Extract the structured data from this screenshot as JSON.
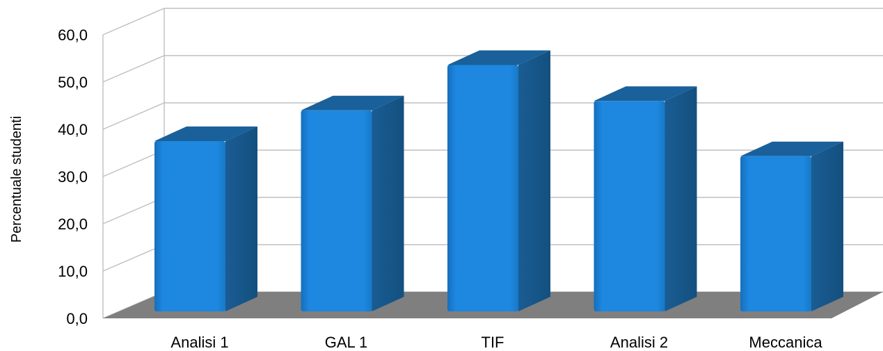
{
  "chart_data": {
    "type": "bar",
    "style": "3d-column",
    "categories": [
      "Analisi 1",
      "GAL 1",
      "TIF",
      "Analisi 2",
      "Meccanica"
    ],
    "values": [
      37.5,
      44.0,
      53.6,
      46.0,
      34.3
    ],
    "ylabel": "Percentuale studenti",
    "xlabel": "",
    "title": "",
    "ylim": [
      0,
      60
    ],
    "y_ticks": [
      "0,0",
      "10,0",
      "20,0",
      "30,0",
      "40,0",
      "50,0",
      "60,0"
    ],
    "grid": true,
    "legend": "none",
    "colors": {
      "bar_front": "#1e88e0",
      "bar_side": "#13507f",
      "bar_top": "#1a609a",
      "floor": "#7f7f7f",
      "grid": "#bfbfbf"
    }
  }
}
